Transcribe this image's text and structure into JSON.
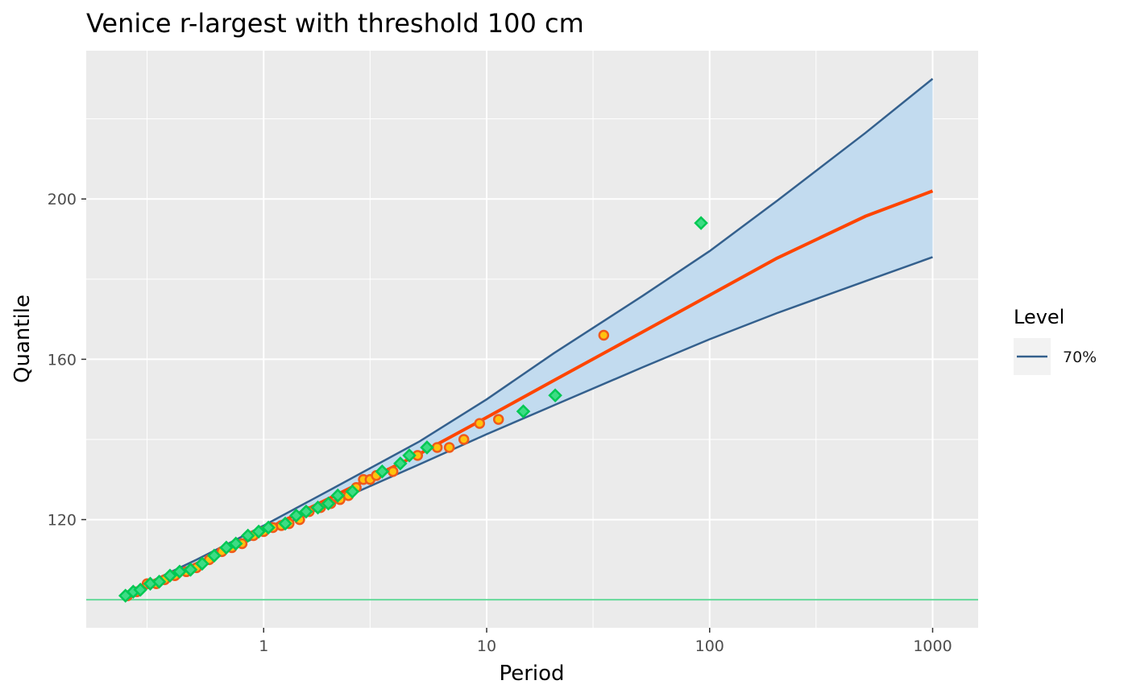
{
  "chart_data": {
    "type": "scatter",
    "title": "Venice r-largest with threshold 100 cm",
    "xlabel": "Period",
    "ylabel": "Quantile",
    "xscale": "log",
    "xlim": [
      0.16,
      1600
    ],
    "ylim": [
      93,
      237
    ],
    "x_ticks": [
      1,
      10,
      100,
      1000
    ],
    "x_tick_labels": [
      "1",
      "10",
      "100",
      "1000"
    ],
    "y_ticks": [
      120,
      160,
      200
    ],
    "y_tick_labels": [
      "120",
      "160",
      "200"
    ],
    "grid": true,
    "panel_background": "#ebebeb",
    "legend": {
      "title": "Level",
      "placement": "right",
      "entries": [
        {
          "label": "70%",
          "color": "#34608d"
        }
      ]
    },
    "threshold": {
      "y": 100,
      "color": "#66d99a"
    },
    "fit_line": {
      "color": "#ff4500",
      "x": [
        0.25,
        0.5,
        1,
        2,
        5,
        10,
        20,
        50,
        100,
        200,
        500,
        1000
      ],
      "y": [
        101.5,
        109.0,
        117.3,
        125.5,
        136.4,
        145.5,
        154.7,
        166.8,
        176.0,
        185.2,
        195.7,
        202.0
      ]
    },
    "confidence_band": {
      "level": "70%",
      "fill": "#c2dbef",
      "line_color": "#34608d",
      "x": [
        0.25,
        0.5,
        1,
        2,
        5,
        10,
        20,
        50,
        100,
        200,
        500,
        1000
      ],
      "upper": [
        102,
        110.0,
        118.5,
        127.5,
        139.5,
        150.0,
        161.5,
        175.8,
        187.0,
        199.5,
        216.5,
        230.0
      ],
      "lower": [
        101,
        108.5,
        116.5,
        124.0,
        133.8,
        141.3,
        148.5,
        158.0,
        165.0,
        171.5,
        179.5,
        185.5
      ]
    },
    "series": [
      {
        "marker": "circle",
        "fill": "#ffc20e",
        "stroke": "#f05a1a",
        "points": [
          [
            0.245,
            101
          ],
          [
            0.27,
            102
          ],
          [
            0.3,
            104
          ],
          [
            0.33,
            104
          ],
          [
            0.36,
            105
          ],
          [
            0.4,
            106
          ],
          [
            0.45,
            107
          ],
          [
            0.5,
            108
          ],
          [
            0.57,
            110
          ],
          [
            0.65,
            112
          ],
          [
            0.72,
            113
          ],
          [
            0.8,
            114
          ],
          [
            0.9,
            116
          ],
          [
            1.0,
            117
          ],
          [
            1.1,
            118
          ],
          [
            1.2,
            118.5
          ],
          [
            1.3,
            119
          ],
          [
            1.45,
            120
          ],
          [
            1.6,
            122
          ],
          [
            1.8,
            123
          ],
          [
            2.0,
            124
          ],
          [
            2.2,
            125
          ],
          [
            2.4,
            126
          ],
          [
            2.6,
            128
          ],
          [
            2.8,
            130
          ],
          [
            3.0,
            130
          ],
          [
            3.2,
            131
          ],
          [
            3.8,
            132
          ],
          [
            4.9,
            136
          ],
          [
            6.0,
            138
          ],
          [
            6.8,
            138
          ],
          [
            7.9,
            140
          ],
          [
            9.3,
            144
          ],
          [
            11.3,
            145
          ],
          [
            33.5,
            166
          ]
        ]
      },
      {
        "marker": "diamond",
        "fill": "#3ddc84",
        "stroke": "#00c853",
        "points": [
          [
            0.24,
            101
          ],
          [
            0.26,
            102
          ],
          [
            0.28,
            102.5
          ],
          [
            0.31,
            104
          ],
          [
            0.34,
            104.5
          ],
          [
            0.38,
            106
          ],
          [
            0.42,
            107
          ],
          [
            0.47,
            107.5
          ],
          [
            0.53,
            109
          ],
          [
            0.6,
            111
          ],
          [
            0.68,
            113
          ],
          [
            0.75,
            114
          ],
          [
            0.85,
            116
          ],
          [
            0.95,
            117
          ],
          [
            1.05,
            118
          ],
          [
            1.25,
            119
          ],
          [
            1.4,
            121
          ],
          [
            1.55,
            122
          ],
          [
            1.75,
            123
          ],
          [
            1.95,
            124
          ],
          [
            2.15,
            126
          ],
          [
            2.5,
            127
          ],
          [
            3.4,
            132
          ],
          [
            4.1,
            134
          ],
          [
            4.5,
            136
          ],
          [
            5.4,
            138
          ],
          [
            14.6,
            147
          ],
          [
            20.3,
            151
          ],
          [
            91.5,
            194
          ]
        ]
      }
    ]
  }
}
